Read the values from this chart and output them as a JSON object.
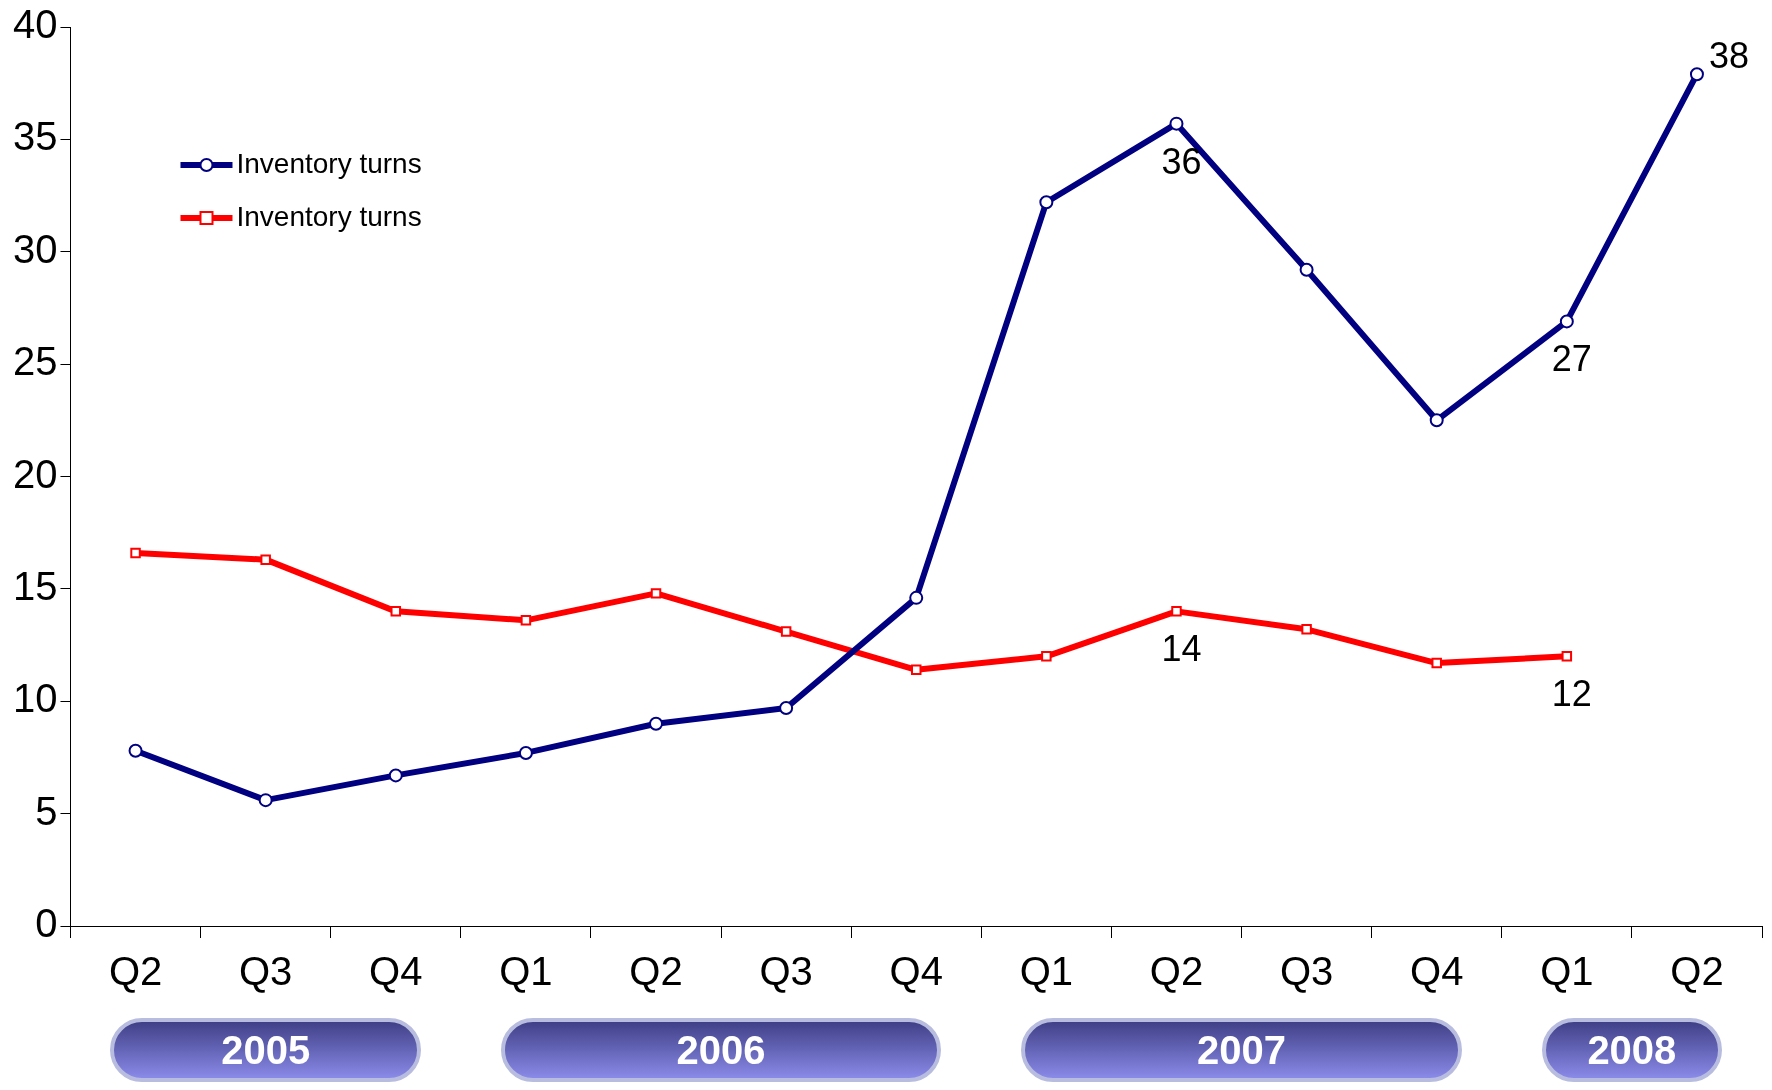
{
  "chart_data": {
    "type": "line",
    "categories": [
      "Q2",
      "Q3",
      "Q4",
      "Q1",
      "Q2",
      "Q3",
      "Q4",
      "Q1",
      "Q2",
      "Q3",
      "Q4",
      "Q1",
      "Q2"
    ],
    "series": [
      {
        "name": "Inventory turns",
        "color": "#000080",
        "marker": "circle",
        "values": [
          7.8,
          5.6,
          6.7,
          7.7,
          9.0,
          9.7,
          14.6,
          32.2,
          35.7,
          29.2,
          22.5,
          26.9,
          37.9
        ],
        "value_labels": [
          null,
          null,
          null,
          null,
          null,
          null,
          null,
          null,
          "36",
          null,
          null,
          "27",
          "38"
        ]
      },
      {
        "name": "Inventory turns",
        "color": "#ff0000",
        "marker": "square",
        "values": [
          16.6,
          16.3,
          14.0,
          13.6,
          14.8,
          13.1,
          11.4,
          12.0,
          14.0,
          13.2,
          11.7,
          12.0,
          null
        ],
        "value_labels": [
          null,
          null,
          null,
          null,
          null,
          null,
          null,
          null,
          "14",
          null,
          null,
          "12",
          null
        ]
      }
    ],
    "ylim": [
      0,
      40
    ],
    "yticks": [
      0,
      5,
      10,
      15,
      20,
      25,
      30,
      35,
      40
    ],
    "grid": false,
    "legend": "top left",
    "annotations": [
      "2005",
      "2006",
      "2007",
      "2008"
    ]
  }
}
